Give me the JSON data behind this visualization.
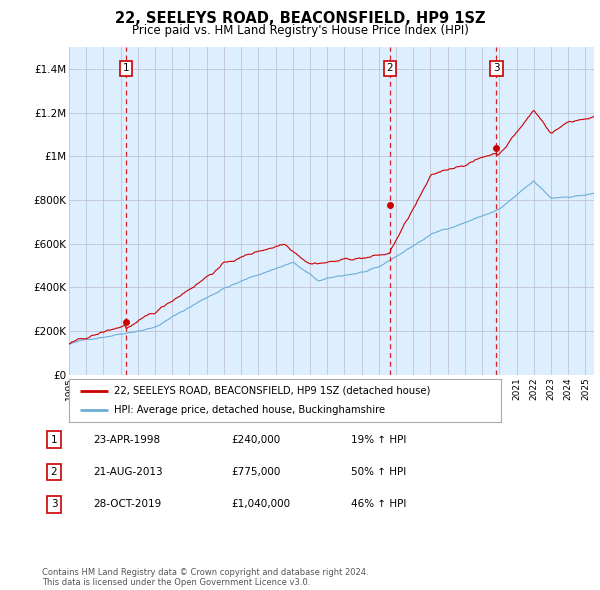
{
  "title": "22, SEELEYS ROAD, BEACONSFIELD, HP9 1SZ",
  "subtitle": "Price paid vs. HM Land Registry's House Price Index (HPI)",
  "xlim": [
    1995.0,
    2025.5
  ],
  "ylim": [
    0,
    1500000
  ],
  "yticks": [
    0,
    200000,
    400000,
    600000,
    800000,
    1000000,
    1200000,
    1400000
  ],
  "ytick_labels": [
    "£0",
    "£200K",
    "£400K",
    "£600K",
    "£800K",
    "£1M",
    "£1.2M",
    "£1.4M"
  ],
  "xticks": [
    1995,
    1996,
    1997,
    1998,
    1999,
    2000,
    2001,
    2002,
    2003,
    2004,
    2005,
    2006,
    2007,
    2008,
    2009,
    2010,
    2011,
    2012,
    2013,
    2014,
    2015,
    2016,
    2017,
    2018,
    2019,
    2020,
    2021,
    2022,
    2023,
    2024,
    2025
  ],
  "sale_dates": [
    1998.31,
    2013.64,
    2019.83
  ],
  "sale_prices": [
    240000,
    775000,
    1040000
  ],
  "sale_labels": [
    "1",
    "2",
    "3"
  ],
  "hpi_color": "#6baed6",
  "price_color": "#cc0000",
  "vline_color": "#cc0000",
  "chart_bg_color": "#ddeeff",
  "legend_label_price": "22, SEELEYS ROAD, BEACONSFIELD, HP9 1SZ (detached house)",
  "legend_label_hpi": "HPI: Average price, detached house, Buckinghamshire",
  "table_entries": [
    {
      "num": "1",
      "date": "23-APR-1998",
      "price": "£240,000",
      "change": "19% ↑ HPI"
    },
    {
      "num": "2",
      "date": "21-AUG-2013",
      "price": "£775,000",
      "change": "50% ↑ HPI"
    },
    {
      "num": "3",
      "date": "28-OCT-2019",
      "price": "£1,040,000",
      "change": "46% ↑ HPI"
    }
  ],
  "footer": "Contains HM Land Registry data © Crown copyright and database right 2024.\nThis data is licensed under the Open Government Licence v3.0.",
  "background_color": "#ffffff",
  "grid_color": "#bbbbcc"
}
